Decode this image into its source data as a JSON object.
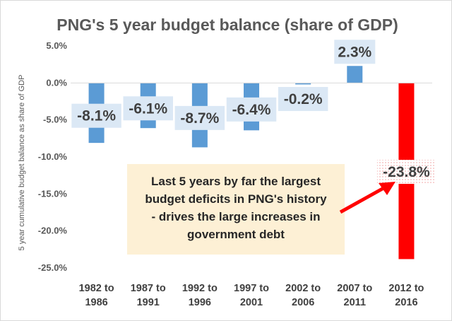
{
  "chart_data": {
    "type": "bar",
    "title": "PNG's 5 year budget balance (share of GDP)",
    "ylabel": "5 year cumulative budget balance as share of GDP",
    "xlabel": "",
    "categories": [
      [
        "1982 to",
        "1986"
      ],
      [
        "1987 to",
        "1991"
      ],
      [
        "1992 to",
        "1996"
      ],
      [
        "1997 to",
        "2001"
      ],
      [
        "2002 to",
        "2006"
      ],
      [
        "2007 to",
        "2011"
      ],
      [
        "2012 to",
        "2016"
      ]
    ],
    "values": [
      -8.1,
      -6.1,
      -8.7,
      -6.4,
      -0.2,
      2.3,
      -23.8
    ],
    "data_labels": [
      "-8.1%",
      "-6.1%",
      "-8.7%",
      "-6.4%",
      "-0.2%",
      "2.3%",
      "-23.8%"
    ],
    "ylim": [
      -25,
      5
    ],
    "yticks": [
      5,
      0,
      -5,
      -10,
      -15,
      -20,
      -25
    ],
    "ytick_labels": [
      "5.0%",
      "0.0%",
      "-5.0%",
      "-10.0%",
      "-15.0%",
      "-20.0%",
      "-25.0%"
    ],
    "grid": false,
    "legend": "none",
    "colors": {
      "bar": "#5b9bd5",
      "highlight": "#ff0000",
      "label_bg": "#dbe8f5",
      "annotation_bg": "#fdf0d5",
      "arrow": "#ff0000"
    },
    "annotation": {
      "lines": [
        "Last 5 years by far the largest",
        "budget deficits in PNG's history",
        "- drives the large increases in",
        "government debt"
      ]
    }
  }
}
